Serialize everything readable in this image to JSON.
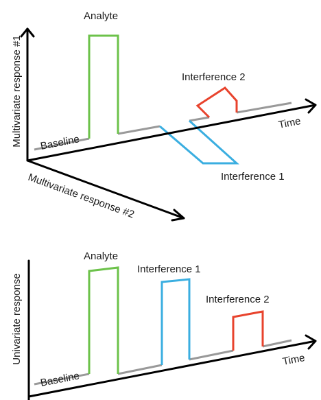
{
  "top_panel": {
    "y_axis_label": "Multivariate response #1",
    "z_axis_label": "Multivariate response #2",
    "x_axis_label": "Time",
    "baseline_label": "Baseline",
    "analyte_label": "Analyte",
    "interference1_label": "Interference 1",
    "interference2_label": "Interference 2"
  },
  "bottom_panel": {
    "y_axis_label": "Univariate response",
    "x_axis_label": "Time",
    "baseline_label": "Baseline",
    "analyte_label": "Analyte",
    "interference1_label": "Interference 1",
    "interference2_label": "Interference 2"
  },
  "colors": {
    "axis": "#000000",
    "baseline": "#999999",
    "analyte": "#6cc24a",
    "interference1": "#3aaee0",
    "interference2": "#e8432d"
  }
}
